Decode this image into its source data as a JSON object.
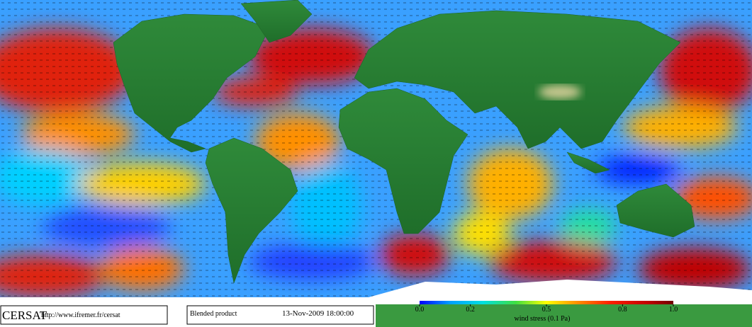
{
  "brand": "CERSAT",
  "url": "http://www.ifremer.fr/cersat",
  "product": "Blended product",
  "timestamp": "13-Nov-2009 18:00:00",
  "colorbar": {
    "label": "wind stress (0.1 Pa)",
    "lim": [
      0,
      1
    ],
    "ticks": [
      {
        "value": 0,
        "label": "0.0"
      },
      0.2,
      0.5,
      0.8,
      {
        "value": 1,
        "label": "1.0"
      }
    ]
  }
}
